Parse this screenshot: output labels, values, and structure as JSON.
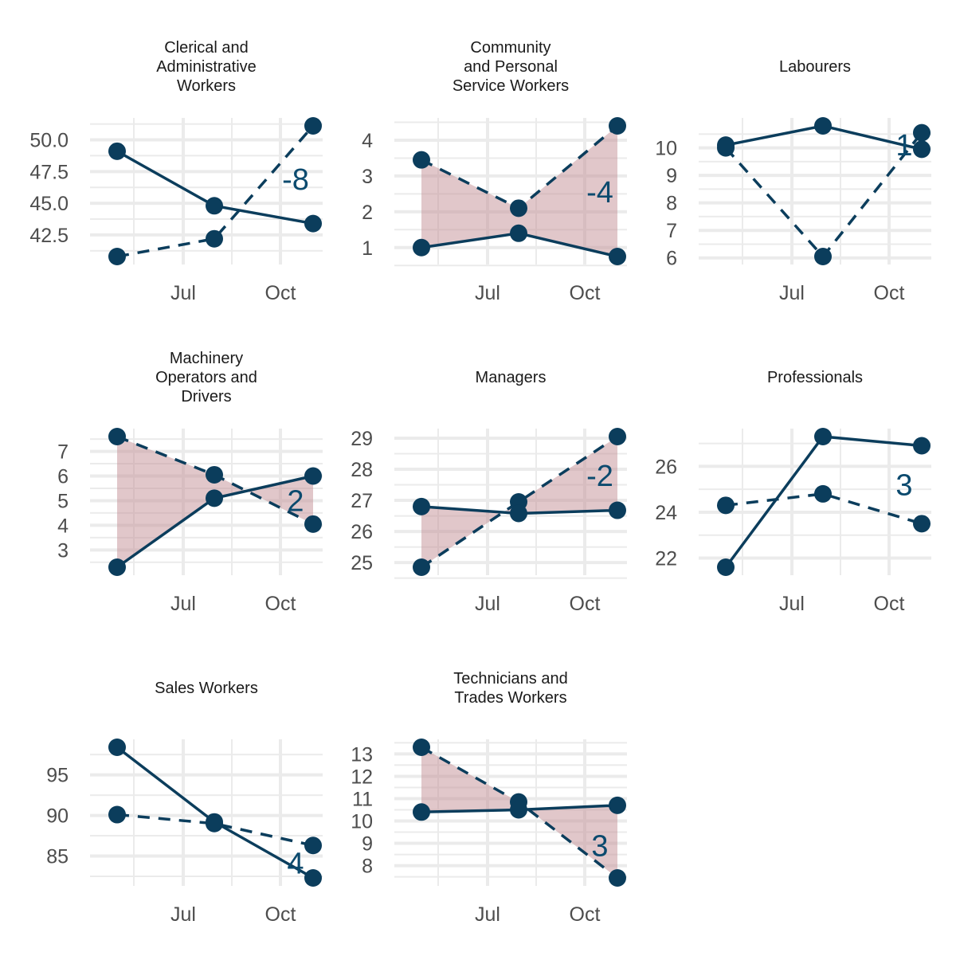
{
  "chart_data": {
    "type": "line",
    "layout": "facet-wrap 3 columns",
    "grid": true,
    "colors": {
      "line": "#0b3d5c",
      "point": "#0b3d5c",
      "shade": "#c48f95",
      "label": "#0b4a6e",
      "grid": "#ebebeb"
    },
    "series": [
      {
        "linetype": "solid"
      },
      {
        "linetype": "dashed"
      }
    ],
    "x_ticks": [
      {
        "label": "Jul",
        "x": 5.5
      },
      {
        "label": "Oct",
        "x": 8.5
      }
    ],
    "x": [
      3,
      6,
      9
    ],
    "xlim": [
      2.5,
      9.5
    ],
    "panels": [
      {
        "title_lines": [
          "Clerical and",
          "Administrative",
          "Workers"
        ],
        "solid": [
          49.1,
          44.8,
          43.4
        ],
        "dashed": [
          40.8,
          42.2,
          51.1
        ],
        "ylim": [
          40.8,
          51.1
        ],
        "yticks": [
          42.5,
          45.0,
          47.5,
          50.0
        ],
        "ytick_labels": [
          "42.5",
          "45.0",
          "47.5",
          "50.0"
        ],
        "annotation": "-8",
        "annotation_y": 46.9,
        "shade": false
      },
      {
        "title_lines": [
          "Community",
          "and Personal",
          "Service Workers"
        ],
        "solid": [
          1.0,
          1.4,
          0.75
        ],
        "dashed": [
          3.45,
          2.1,
          4.4
        ],
        "ylim": [
          0.75,
          4.4
        ],
        "yticks": [
          1,
          2,
          3,
          4
        ],
        "ytick_labels": [
          "1",
          "2",
          "3",
          "4"
        ],
        "annotation": "-4",
        "annotation_y": 2.55,
        "shade": true
      },
      {
        "title_lines": [
          "Labourers"
        ],
        "solid": [
          10.1,
          10.8,
          9.95
        ],
        "dashed": [
          10.0,
          6.05,
          10.55
        ],
        "ylim": [
          6.05,
          10.8
        ],
        "yticks": [
          6,
          7,
          8,
          9,
          10
        ],
        "ytick_labels": [
          "6",
          "7",
          "8",
          "9",
          "10"
        ],
        "annotation": "1",
        "annotation_y": 10.1,
        "shade": false
      },
      {
        "title_lines": [
          "Machinery",
          "Operators and",
          "Drivers"
        ],
        "solid": [
          2.3,
          5.1,
          6.0
        ],
        "dashed": [
          7.6,
          6.05,
          4.05
        ],
        "ylim": [
          2.3,
          7.6
        ],
        "yticks": [
          3,
          4,
          5,
          6,
          7
        ],
        "ytick_labels": [
          "3",
          "4",
          "5",
          "6",
          "7"
        ],
        "annotation": "2",
        "annotation_y": 5.0,
        "shade": true
      },
      {
        "title_lines": [
          "Managers"
        ],
        "solid": [
          26.8,
          26.58,
          26.68
        ],
        "dashed": [
          24.85,
          26.95,
          29.05
        ],
        "ylim": [
          24.85,
          29.05
        ],
        "yticks": [
          25,
          26,
          27,
          28,
          29
        ],
        "ytick_labels": [
          "25",
          "26",
          "27",
          "28",
          "29"
        ],
        "annotation": "-2",
        "annotation_y": 27.8,
        "shade": true
      },
      {
        "title_lines": [
          "Professionals"
        ],
        "solid": [
          21.6,
          27.3,
          26.9
        ],
        "dashed": [
          24.3,
          24.8,
          23.5
        ],
        "ylim": [
          21.6,
          27.3
        ],
        "yticks": [
          22,
          24,
          26
        ],
        "ytick_labels": [
          "22",
          "24",
          "26"
        ],
        "annotation": "3",
        "annotation_y": 25.2,
        "shade": false
      },
      {
        "title_lines": [
          "Sales Workers"
        ],
        "solid": [
          98.4,
          89.2,
          82.3
        ],
        "dashed": [
          90.1,
          89.0,
          86.3
        ],
        "ylim": [
          82.3,
          98.4
        ],
        "yticks": [
          85,
          90,
          95
        ],
        "ytick_labels": [
          "85",
          "90",
          "95"
        ],
        "annotation": "4",
        "annotation_y": 84.1,
        "shade": false
      },
      {
        "title_lines": [
          "Technicians and",
          "Trades Workers"
        ],
        "solid": [
          10.4,
          10.5,
          10.7
        ],
        "dashed": [
          13.3,
          10.85,
          7.45
        ],
        "ylim": [
          7.45,
          13.3
        ],
        "yticks": [
          8,
          9,
          10,
          11,
          12,
          13
        ],
        "ytick_labels": [
          "8",
          "9",
          "10",
          "11",
          "12",
          "13"
        ],
        "annotation": "3",
        "annotation_y": 8.9,
        "shade": true
      }
    ]
  }
}
